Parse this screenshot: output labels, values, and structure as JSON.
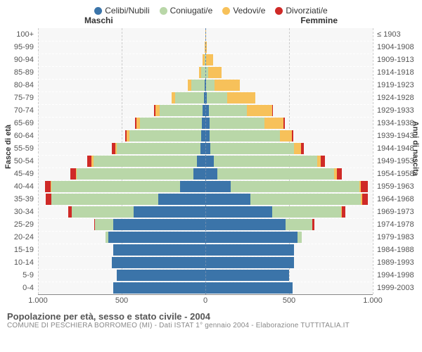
{
  "legend": [
    {
      "label": "Celibi/Nubili",
      "color": "#3b74a9"
    },
    {
      "label": "Coniugati/e",
      "color": "#b9d7a8"
    },
    {
      "label": "Vedovi/e",
      "color": "#f7c15a"
    },
    {
      "label": "Divorziati/e",
      "color": "#cf2a27"
    }
  ],
  "headers": {
    "male": "Maschi",
    "female": "Femmine"
  },
  "axis_titles": {
    "left": "Fasce di età",
    "right": "Anni di nascita"
  },
  "x_ticks": [
    "1.000",
    "500",
    "0",
    "500",
    "1.000"
  ],
  "max_value": 1000,
  "grid_color": "#cccccc",
  "plot_bg": "#f7f7f7",
  "footer": {
    "title": "Popolazione per età, sesso e stato civile - 2004",
    "subtitle": "COMUNE DI PESCHIERA BORROMEO (MI) - Dati ISTAT 1° gennaio 2004 - Elaborazione TUTTITALIA.IT"
  },
  "rows": [
    {
      "age": "100+",
      "birth": "≤ 1903",
      "m": [
        0,
        0,
        2,
        0
      ],
      "f": [
        0,
        0,
        2,
        0
      ]
    },
    {
      "age": "95-99",
      "birth": "1904-1908",
      "m": [
        0,
        0,
        5,
        0
      ],
      "f": [
        0,
        0,
        10,
        0
      ]
    },
    {
      "age": "90-94",
      "birth": "1909-1913",
      "m": [
        0,
        5,
        10,
        0
      ],
      "f": [
        0,
        5,
        40,
        0
      ]
    },
    {
      "age": "85-89",
      "birth": "1914-1918",
      "m": [
        0,
        25,
        15,
        0
      ],
      "f": [
        0,
        15,
        80,
        0
      ]
    },
    {
      "age": "80-84",
      "birth": "1919-1923",
      "m": [
        5,
        80,
        20,
        0
      ],
      "f": [
        5,
        50,
        150,
        0
      ]
    },
    {
      "age": "75-79",
      "birth": "1924-1928",
      "m": [
        10,
        170,
        20,
        0
      ],
      "f": [
        10,
        120,
        170,
        0
      ]
    },
    {
      "age": "70-74",
      "birth": "1929-1933",
      "m": [
        15,
        260,
        25,
        5
      ],
      "f": [
        20,
        230,
        150,
        5
      ]
    },
    {
      "age": "65-69",
      "birth": "1934-1938",
      "m": [
        20,
        370,
        20,
        10
      ],
      "f": [
        25,
        330,
        110,
        10
      ]
    },
    {
      "age": "60-64",
      "birth": "1939-1943",
      "m": [
        25,
        430,
        15,
        10
      ],
      "f": [
        25,
        420,
        70,
        10
      ]
    },
    {
      "age": "55-59",
      "birth": "1944-1948",
      "m": [
        30,
        500,
        10,
        20
      ],
      "f": [
        30,
        500,
        40,
        20
      ]
    },
    {
      "age": "50-54",
      "birth": "1949-1953",
      "m": [
        50,
        620,
        10,
        25
      ],
      "f": [
        50,
        620,
        20,
        25
      ]
    },
    {
      "age": "45-49",
      "birth": "1954-1958",
      "m": [
        70,
        700,
        5,
        30
      ],
      "f": [
        70,
        700,
        15,
        30
      ]
    },
    {
      "age": "40-44",
      "birth": "1959-1963",
      "m": [
        150,
        770,
        5,
        35
      ],
      "f": [
        150,
        770,
        10,
        40
      ]
    },
    {
      "age": "35-39",
      "birth": "1964-1968",
      "m": [
        280,
        640,
        2,
        30
      ],
      "f": [
        270,
        660,
        5,
        35
      ]
    },
    {
      "age": "30-34",
      "birth": "1969-1973",
      "m": [
        430,
        370,
        0,
        20
      ],
      "f": [
        400,
        410,
        5,
        20
      ]
    },
    {
      "age": "25-29",
      "birth": "1974-1978",
      "m": [
        550,
        110,
        0,
        5
      ],
      "f": [
        480,
        160,
        0,
        10
      ]
    },
    {
      "age": "20-24",
      "birth": "1979-1983",
      "m": [
        580,
        15,
        0,
        0
      ],
      "f": [
        550,
        25,
        0,
        0
      ]
    },
    {
      "age": "15-19",
      "birth": "1984-1988",
      "m": [
        550,
        0,
        0,
        0
      ],
      "f": [
        530,
        0,
        0,
        0
      ]
    },
    {
      "age": "10-14",
      "birth": "1989-1993",
      "m": [
        560,
        0,
        0,
        0
      ],
      "f": [
        530,
        0,
        0,
        0
      ]
    },
    {
      "age": "5-9",
      "birth": "1994-1998",
      "m": [
        530,
        0,
        0,
        0
      ],
      "f": [
        500,
        0,
        0,
        0
      ]
    },
    {
      "age": "0-4",
      "birth": "1999-2003",
      "m": [
        550,
        0,
        0,
        0
      ],
      "f": [
        520,
        0,
        0,
        0
      ]
    }
  ]
}
